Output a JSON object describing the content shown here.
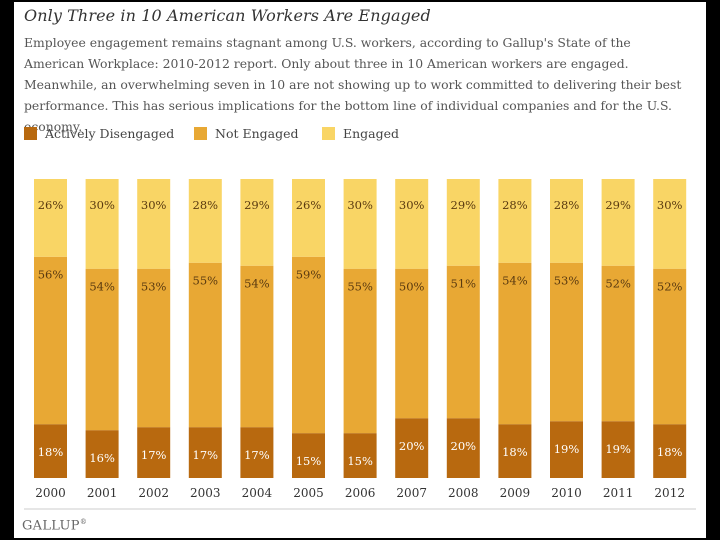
{
  "chart_data": {
    "type": "bar",
    "stacked": true,
    "title": "Only Three in 10 American Workers Are Engaged",
    "subtitle": "Employee engagement remains stagnant among U.S. workers, according to Gallup's State of the American Workplace: 2010-2012 report. Only about three in 10 American workers are engaged. Meanwhile, an overwhelming seven in 10 are not showing up to work committed to delivering their best performance. This has serious implications for the bottom line of individual companies and for the U.S. economy.",
    "categories": [
      "2000",
      "2001",
      "2002",
      "2003",
      "2004",
      "2005",
      "2006",
      "2007",
      "2008",
      "2009",
      "2010",
      "2011",
      "2012"
    ],
    "series": [
      {
        "name": "Actively Disengaged",
        "color": "#b8690f",
        "values": [
          18,
          16,
          17,
          17,
          17,
          15,
          15,
          20,
          20,
          18,
          19,
          19,
          18
        ]
      },
      {
        "name": "Not Engaged",
        "color": "#e8a834",
        "values": [
          56,
          54,
          53,
          55,
          54,
          59,
          55,
          50,
          51,
          54,
          53,
          52,
          52
        ]
      },
      {
        "name": "Engaged",
        "color": "#f9d565",
        "values": [
          26,
          30,
          30,
          28,
          29,
          26,
          30,
          30,
          29,
          28,
          28,
          29,
          30
        ]
      }
    ],
    "labels": {
      "Actively Disengaged": [
        "18%",
        "16%",
        "17%",
        "17%",
        "17%",
        "15%",
        "15%",
        "20%",
        "20%",
        "18%",
        "19%",
        "19%",
        "18%"
      ],
      "Not Engaged": [
        "56%",
        "54%",
        "53%",
        "55%",
        "54%",
        "59%",
        "55%",
        "50%",
        "51%",
        "54%",
        "53%",
        "52%",
        "52%"
      ],
      "Engaged": [
        "26%",
        "30%",
        "30%",
        "28%",
        "29%",
        "26%",
        "30%",
        "30%",
        "29%",
        "28%",
        "28%",
        "29%",
        "30%"
      ]
    },
    "ylim": [
      0,
      100
    ],
    "xlabel": "",
    "ylabel": "",
    "legend": "top-left",
    "grid": false
  },
  "branding": {
    "logo": "GALLUP",
    "mark": "®"
  }
}
